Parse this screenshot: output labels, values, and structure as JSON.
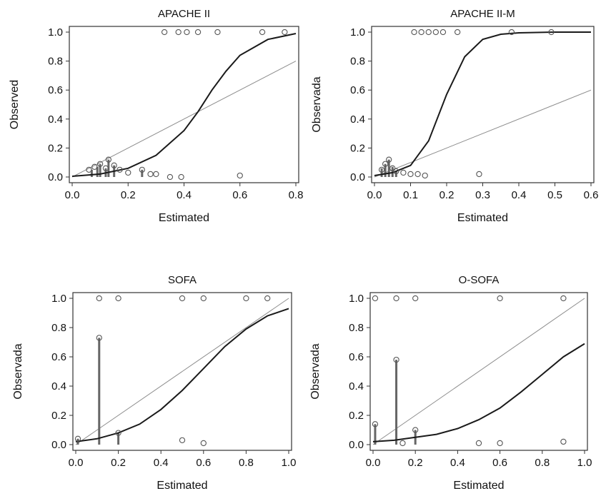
{
  "chart_data": [
    {
      "type": "scatter",
      "title": "APACHE II",
      "xlabel": "Estimated",
      "ylabel": "Observed",
      "xlim": [
        0,
        0.8
      ],
      "ylim": [
        0,
        1
      ],
      "xticks": [
        "0.0",
        "0.2",
        "0.4",
        "0.6",
        "0.8"
      ],
      "yticks": [
        "0.0",
        "0.2",
        "0.4",
        "0.6",
        "0.8",
        "1.0"
      ],
      "reference_line": {
        "slope": 1,
        "intercept": 0
      },
      "fitted_curve": {
        "x": [
          0.0,
          0.1,
          0.2,
          0.3,
          0.4,
          0.45,
          0.5,
          0.55,
          0.6,
          0.7,
          0.8
        ],
        "y": [
          0.005,
          0.02,
          0.06,
          0.15,
          0.32,
          0.45,
          0.6,
          0.73,
          0.84,
          0.95,
          0.99
        ]
      },
      "points": [
        {
          "x": 0.06,
          "y": 0.05
        },
        {
          "x": 0.08,
          "y": 0.07
        },
        {
          "x": 0.1,
          "y": 0.09
        },
        {
          "x": 0.12,
          "y": 0.06
        },
        {
          "x": 0.13,
          "y": 0.12
        },
        {
          "x": 0.15,
          "y": 0.08
        },
        {
          "x": 0.17,
          "y": 0.05
        },
        {
          "x": 0.2,
          "y": 0.03
        },
        {
          "x": 0.25,
          "y": 0.05
        },
        {
          "x": 0.28,
          "y": 0.02
        },
        {
          "x": 0.3,
          "y": 0.02
        },
        {
          "x": 0.35,
          "y": 0.0
        },
        {
          "x": 0.39,
          "y": 0.0
        },
        {
          "x": 0.6,
          "y": 0.01
        },
        {
          "x": 0.33,
          "y": 1.0
        },
        {
          "x": 0.38,
          "y": 1.0
        },
        {
          "x": 0.41,
          "y": 1.0
        },
        {
          "x": 0.45,
          "y": 1.0
        },
        {
          "x": 0.52,
          "y": 1.0
        },
        {
          "x": 0.68,
          "y": 1.0
        },
        {
          "x": 0.76,
          "y": 1.0
        }
      ],
      "stacks": [
        {
          "x": 0.07,
          "y0": 0.0,
          "y1": 0.05
        },
        {
          "x": 0.09,
          "y0": 0.0,
          "y1": 0.07
        },
        {
          "x": 0.1,
          "y0": 0.0,
          "y1": 0.09
        },
        {
          "x": 0.12,
          "y0": 0.0,
          "y1": 0.06
        },
        {
          "x": 0.13,
          "y0": 0.0,
          "y1": 0.12
        },
        {
          "x": 0.15,
          "y0": 0.0,
          "y1": 0.08
        },
        {
          "x": 0.25,
          "y0": 0.0,
          "y1": 0.05
        }
      ]
    },
    {
      "type": "scatter",
      "title": "APACHE II-M",
      "xlabel": "Estimated",
      "ylabel": "Observada",
      "xlim": [
        0,
        0.6
      ],
      "ylim": [
        0,
        1
      ],
      "xticks": [
        "0.0",
        "0.1",
        "0.2",
        "0.3",
        "0.4",
        "0.5",
        "0.6"
      ],
      "yticks": [
        "0.0",
        "0.2",
        "0.4",
        "0.6",
        "0.8",
        "1.0"
      ],
      "reference_line": {
        "slope": 1,
        "intercept": 0
      },
      "fitted_curve": {
        "x": [
          0.0,
          0.05,
          0.1,
          0.15,
          0.2,
          0.25,
          0.3,
          0.35,
          0.4,
          0.5,
          0.6
        ],
        "y": [
          0.01,
          0.03,
          0.08,
          0.25,
          0.57,
          0.83,
          0.95,
          0.985,
          0.995,
          1.0,
          1.0
        ]
      },
      "points": [
        {
          "x": 0.02,
          "y": 0.05
        },
        {
          "x": 0.03,
          "y": 0.09
        },
        {
          "x": 0.04,
          "y": 0.12
        },
        {
          "x": 0.05,
          "y": 0.06
        },
        {
          "x": 0.06,
          "y": 0.04
        },
        {
          "x": 0.08,
          "y": 0.03
        },
        {
          "x": 0.1,
          "y": 0.02
        },
        {
          "x": 0.12,
          "y": 0.02
        },
        {
          "x": 0.14,
          "y": 0.01
        },
        {
          "x": 0.29,
          "y": 0.02
        },
        {
          "x": 0.11,
          "y": 1.0
        },
        {
          "x": 0.13,
          "y": 1.0
        },
        {
          "x": 0.15,
          "y": 1.0
        },
        {
          "x": 0.17,
          "y": 1.0
        },
        {
          "x": 0.19,
          "y": 1.0
        },
        {
          "x": 0.23,
          "y": 1.0
        },
        {
          "x": 0.38,
          "y": 1.0
        },
        {
          "x": 0.49,
          "y": 1.0
        }
      ],
      "stacks": [
        {
          "x": 0.02,
          "y0": 0.0,
          "y1": 0.06
        },
        {
          "x": 0.03,
          "y0": 0.0,
          "y1": 0.09
        },
        {
          "x": 0.04,
          "y0": 0.0,
          "y1": 0.12
        },
        {
          "x": 0.05,
          "y0": 0.0,
          "y1": 0.07
        },
        {
          "x": 0.06,
          "y0": 0.0,
          "y1": 0.04
        }
      ]
    },
    {
      "type": "scatter",
      "title": "SOFA",
      "xlabel": "Estimated",
      "ylabel": "Observada",
      "xlim": [
        0,
        1
      ],
      "ylim": [
        0,
        1
      ],
      "xticks": [
        "0.0",
        "0.2",
        "0.4",
        "0.6",
        "0.8",
        "1.0"
      ],
      "yticks": [
        "0.0",
        "0.2",
        "0.4",
        "0.6",
        "0.8",
        "1.0"
      ],
      "reference_line": {
        "slope": 1,
        "intercept": 0
      },
      "fitted_curve": {
        "x": [
          0.0,
          0.1,
          0.2,
          0.3,
          0.4,
          0.5,
          0.6,
          0.7,
          0.8,
          0.9,
          1.0
        ],
        "y": [
          0.02,
          0.04,
          0.08,
          0.14,
          0.24,
          0.37,
          0.52,
          0.67,
          0.79,
          0.88,
          0.93
        ]
      },
      "points": [
        {
          "x": 0.01,
          "y": 0.04
        },
        {
          "x": 0.11,
          "y": 0.73
        },
        {
          "x": 0.2,
          "y": 0.08
        },
        {
          "x": 0.5,
          "y": 0.03
        },
        {
          "x": 0.6,
          "y": 0.01
        },
        {
          "x": 0.11,
          "y": 1.0
        },
        {
          "x": 0.2,
          "y": 1.0
        },
        {
          "x": 0.5,
          "y": 1.0
        },
        {
          "x": 0.6,
          "y": 1.0
        },
        {
          "x": 0.8,
          "y": 1.0
        },
        {
          "x": 0.9,
          "y": 1.0
        }
      ],
      "stacks": [
        {
          "x": 0.01,
          "y0": 0.0,
          "y1": 0.04
        },
        {
          "x": 0.11,
          "y0": 0.0,
          "y1": 0.73
        },
        {
          "x": 0.2,
          "y0": 0.0,
          "y1": 0.08
        }
      ]
    },
    {
      "type": "scatter",
      "title": "O-SOFA",
      "xlabel": "Estimated",
      "ylabel": "Observada",
      "xlim": [
        0,
        1
      ],
      "ylim": [
        0,
        1
      ],
      "xticks": [
        "0.0",
        "0.2",
        "0.4",
        "0.6",
        "0.8",
        "1.0"
      ],
      "yticks": [
        "0.0",
        "0.2",
        "0.4",
        "0.6",
        "0.8",
        "1.0"
      ],
      "reference_line": {
        "slope": 1,
        "intercept": 0
      },
      "fitted_curve": {
        "x": [
          0.0,
          0.1,
          0.2,
          0.3,
          0.4,
          0.5,
          0.6,
          0.7,
          0.8,
          0.9,
          1.0
        ],
        "y": [
          0.02,
          0.03,
          0.05,
          0.07,
          0.11,
          0.17,
          0.25,
          0.36,
          0.48,
          0.6,
          0.69
        ]
      },
      "points": [
        {
          "x": 0.01,
          "y": 0.14
        },
        {
          "x": 0.11,
          "y": 0.58
        },
        {
          "x": 0.14,
          "y": 0.01
        },
        {
          "x": 0.2,
          "y": 0.1
        },
        {
          "x": 0.5,
          "y": 0.01
        },
        {
          "x": 0.6,
          "y": 0.01
        },
        {
          "x": 0.9,
          "y": 0.02
        },
        {
          "x": 0.01,
          "y": 1.0
        },
        {
          "x": 0.11,
          "y": 1.0
        },
        {
          "x": 0.2,
          "y": 1.0
        },
        {
          "x": 0.6,
          "y": 1.0
        },
        {
          "x": 0.9,
          "y": 1.0
        }
      ],
      "stacks": [
        {
          "x": 0.01,
          "y0": 0.0,
          "y1": 0.14
        },
        {
          "x": 0.11,
          "y0": 0.0,
          "y1": 0.58
        },
        {
          "x": 0.2,
          "y0": 0.0,
          "y1": 0.1
        }
      ]
    }
  ]
}
